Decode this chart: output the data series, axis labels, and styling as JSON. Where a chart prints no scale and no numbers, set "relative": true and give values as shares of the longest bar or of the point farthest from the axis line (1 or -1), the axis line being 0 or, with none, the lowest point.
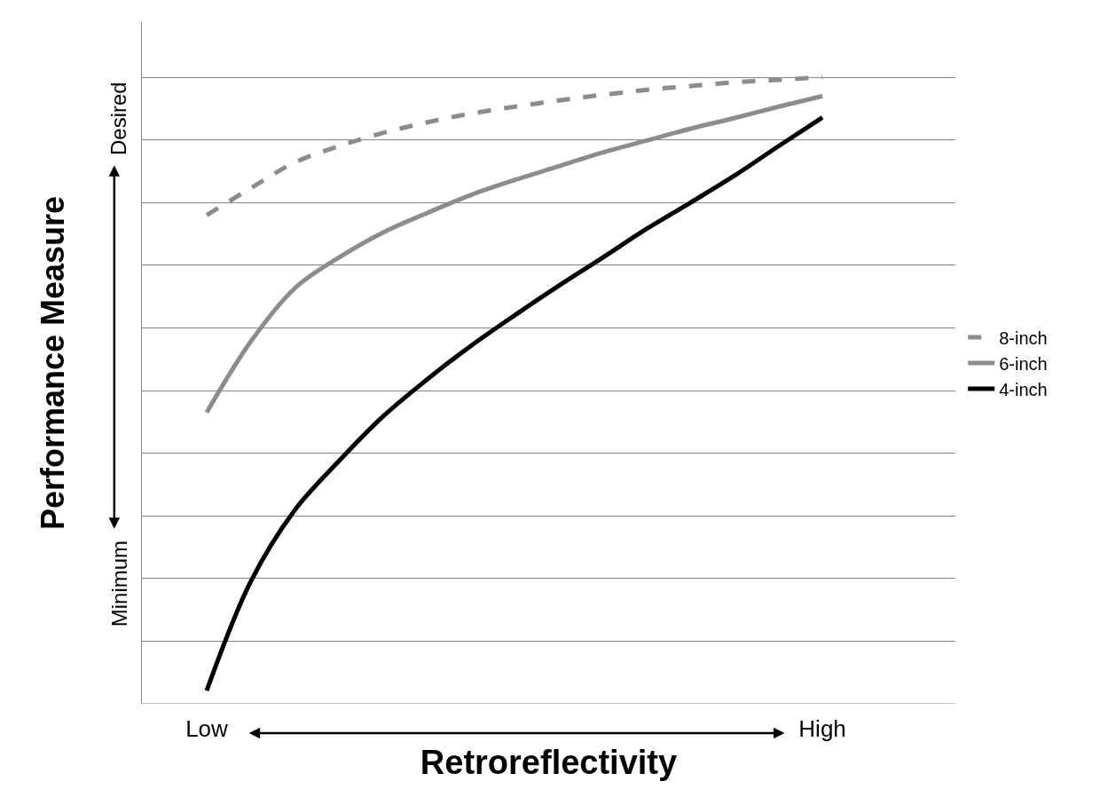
{
  "chart_data": {
    "type": "line",
    "relative": true,
    "xlabel": "Retroreflectivity",
    "ylabel": "Performance Measure",
    "categories": [
      "Low",
      null,
      null,
      null,
      null,
      null,
      null,
      null,
      null,
      null,
      null,
      null,
      null,
      null,
      "High"
    ],
    "series": [
      {
        "name": "8-inch",
        "color": "#8c8c8c",
        "line_style": "dashed",
        "values": [
          0.78,
          0.823,
          0.864,
          0.89,
          0.911,
          0.928,
          0.942,
          0.953,
          0.963,
          0.972,
          0.98,
          0.986,
          0.992,
          0.996,
          1.0
        ]
      },
      {
        "name": "6-inch",
        "color": "#8c8c8c",
        "line_style": "solid",
        "values": [
          0.465,
          0.578,
          0.663,
          0.712,
          0.752,
          0.783,
          0.812,
          0.836,
          0.858,
          0.88,
          0.899,
          0.918,
          0.935,
          0.953,
          0.97
        ]
      },
      {
        "name": "4-inch",
        "color": "#000000",
        "line_style": "solid",
        "values": [
          0.021,
          0.195,
          0.309,
          0.387,
          0.458,
          0.517,
          0.571,
          0.62,
          0.667,
          0.712,
          0.758,
          0.8,
          0.843,
          0.89,
          0.936
        ]
      }
    ],
    "annotations": [
      "Minimum",
      "Desired"
    ],
    "grid": "y",
    "legend": "right",
    "marker": "none"
  }
}
